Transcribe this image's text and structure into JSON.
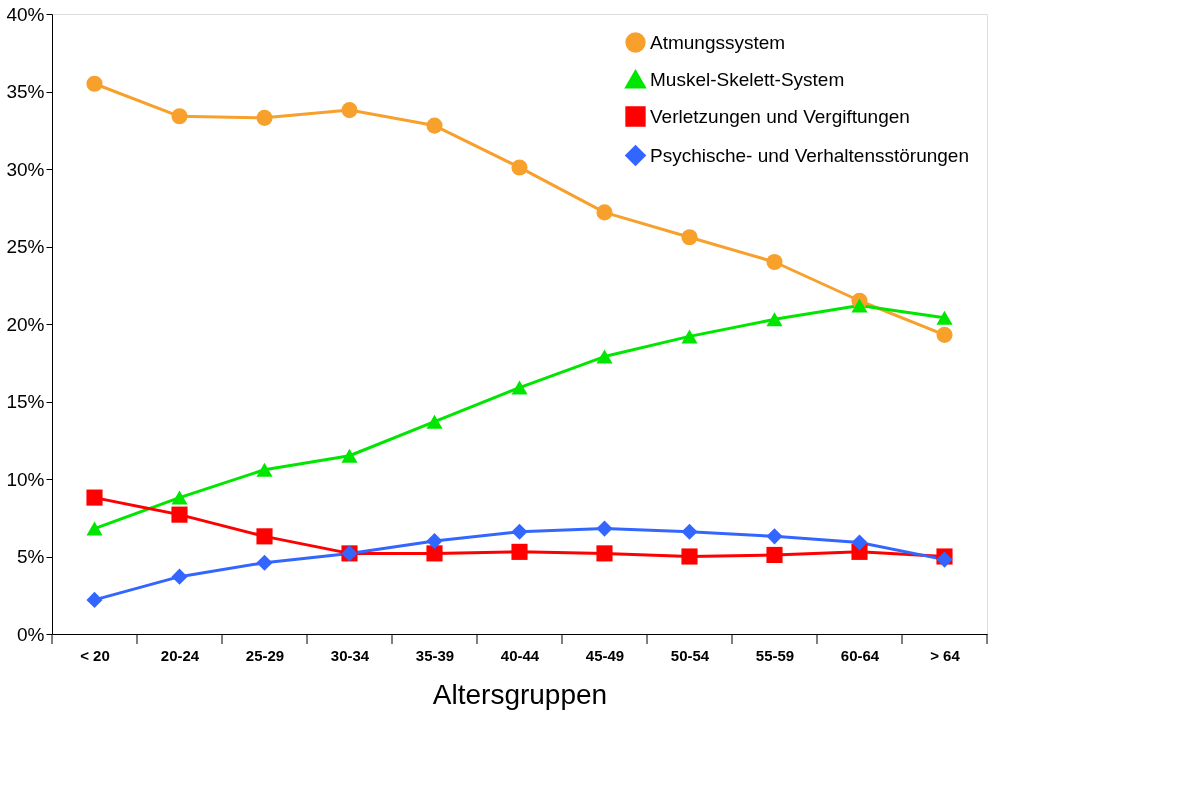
{
  "chart_data": {
    "type": "line",
    "xlabel": "Altersgruppen",
    "categories": [
      "< 20",
      "20-24",
      "25-29",
      "30-34",
      "35-39",
      "40-44",
      "45-49",
      "50-54",
      "55-59",
      "60-64",
      "> 64"
    ],
    "ylim": [
      0,
      40
    ],
    "yticks": [
      {
        "value": 0,
        "label": "0%"
      },
      {
        "value": 5,
        "label": "5%"
      },
      {
        "value": 10,
        "label": "10%"
      },
      {
        "value": 15,
        "label": "15%"
      },
      {
        "value": 20,
        "label": "20%"
      },
      {
        "value": 25,
        "label": "25%"
      },
      {
        "value": 30,
        "label": "30%"
      },
      {
        "value": 35,
        "label": "35%"
      },
      {
        "value": 40,
        "label": "40%"
      }
    ],
    "grid": false,
    "legend": "top right",
    "line_style": "solid",
    "series": [
      {
        "name": "Atmungssystem",
        "color": "#f7a02c",
        "marker": "circle",
        "values": [
          35.5,
          33.4,
          33.3,
          33.8,
          32.8,
          30.1,
          27.2,
          25.6,
          24.0,
          21.5,
          19.3
        ]
      },
      {
        "name": "Muskel-Skelett-System",
        "color": "#00e600",
        "marker": "triangle",
        "values": [
          6.8,
          8.8,
          10.6,
          11.5,
          13.7,
          15.9,
          17.9,
          19.2,
          20.3,
          21.2,
          20.4
        ]
      },
      {
        "name": "Verletzungen und Vergiftungen",
        "color": "#ff0000",
        "marker": "square",
        "values": [
          8.8,
          7.7,
          6.3,
          5.2,
          5.2,
          5.3,
          5.2,
          5.0,
          5.1,
          5.3,
          5.0
        ]
      },
      {
        "name": "Psychische- und Verhaltensstörungen",
        "color": "#3366ff",
        "marker": "diamond",
        "values": [
          2.2,
          3.7,
          4.6,
          5.2,
          6.0,
          6.6,
          6.8,
          6.6,
          6.3,
          5.9,
          4.8
        ]
      }
    ]
  }
}
